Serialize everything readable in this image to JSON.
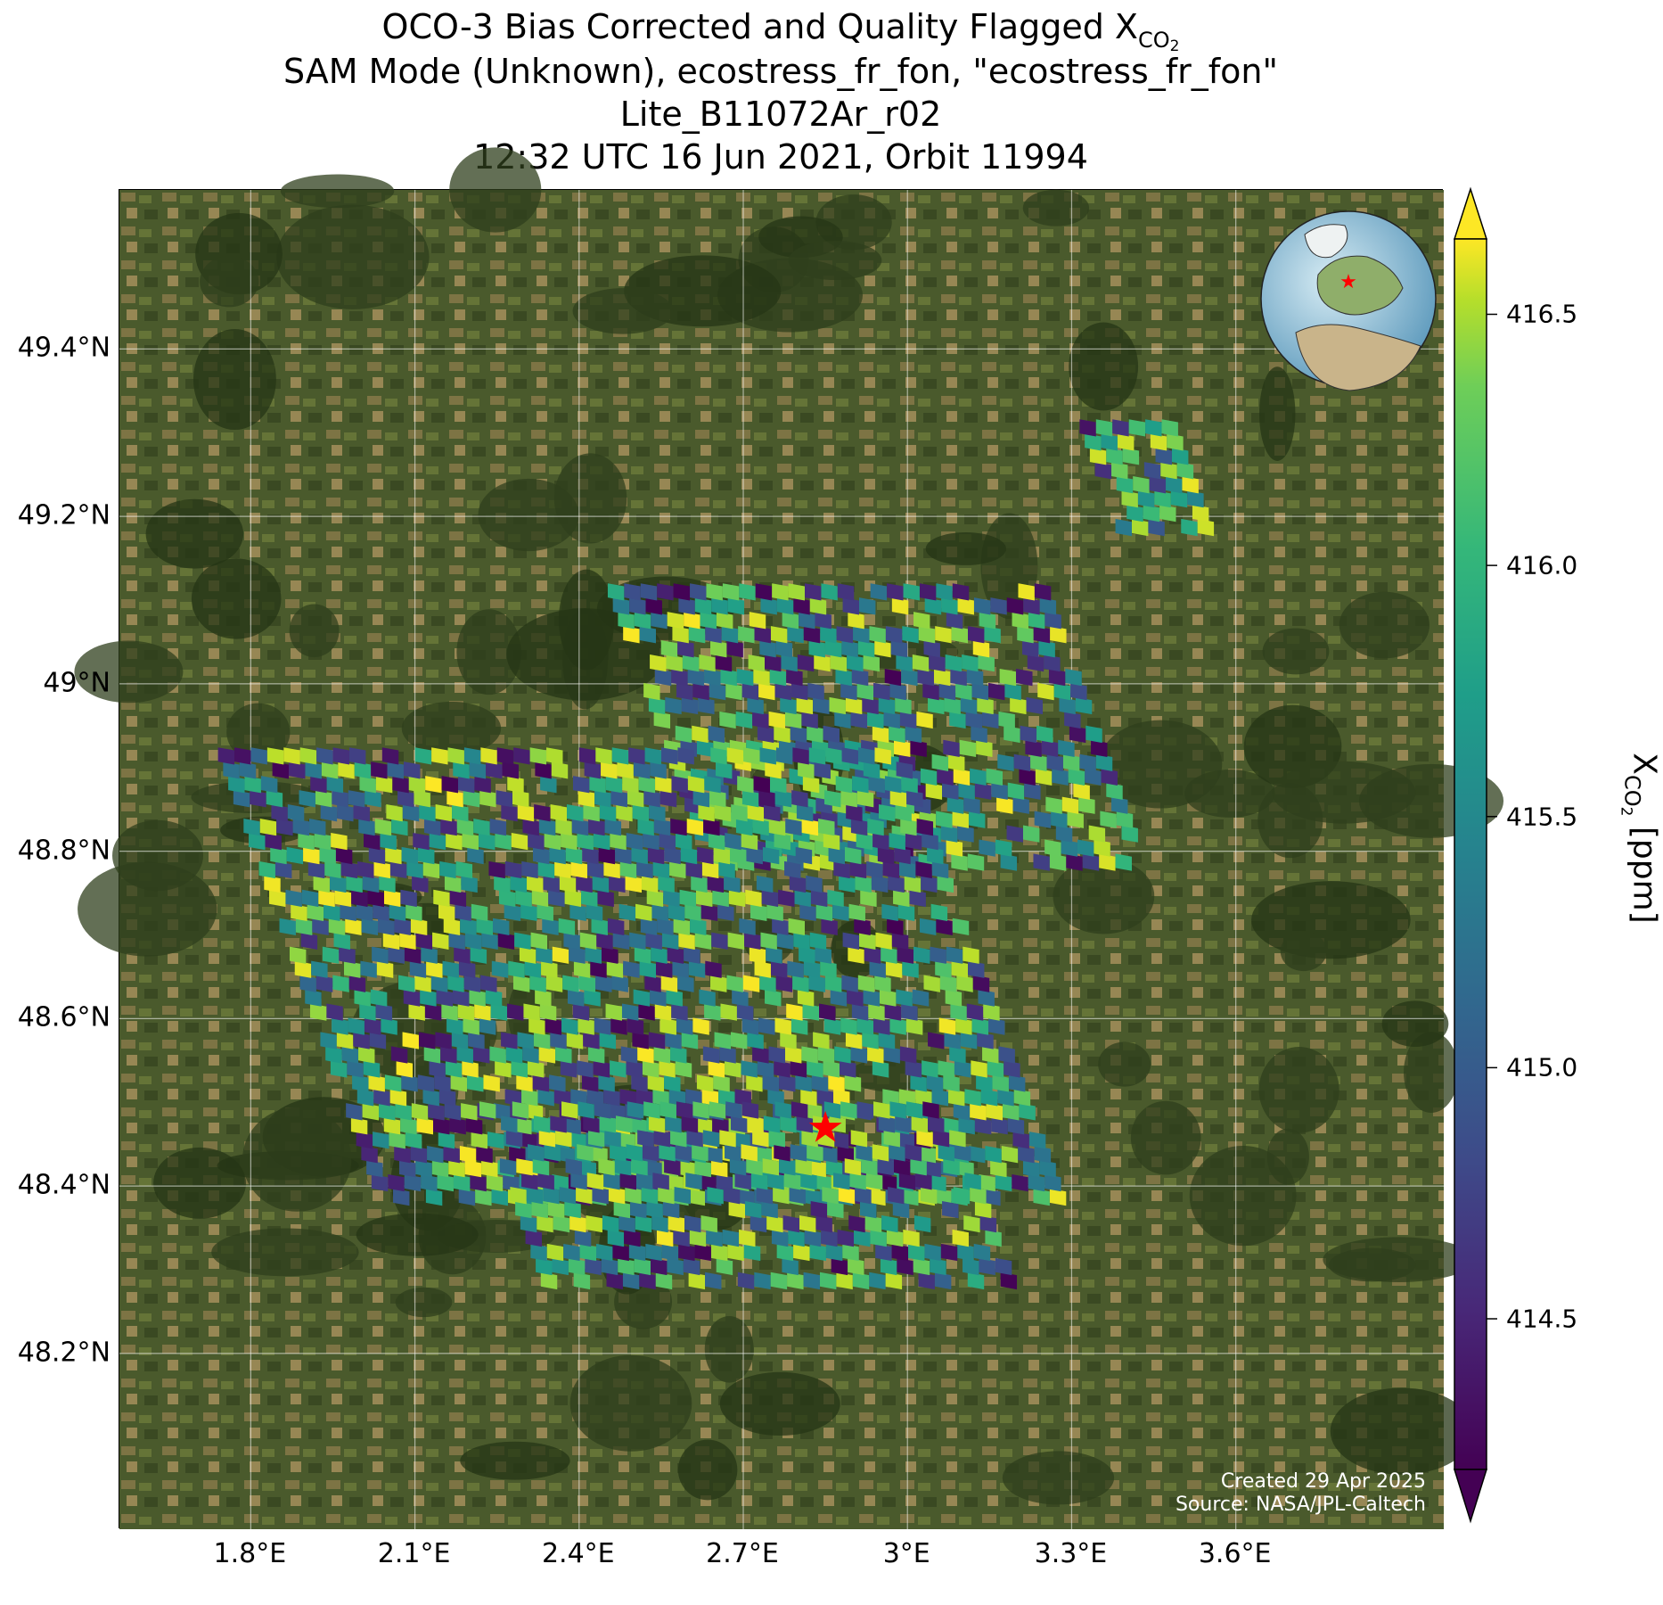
{
  "title": {
    "line1_prefix": "OCO-3 Bias Corrected and Quality Flagged X",
    "line1_sub": "CO",
    "line1_sub2": "2",
    "line2": "SAM Mode (Unknown), ecostress_fr_fon, \"ecostress_fr_fon\"",
    "line3": "Lite_B11072Ar_r02",
    "line4": "12:32 UTC 16 Jun 2021, Orbit 11994"
  },
  "map": {
    "lon_range": [
      1.56,
      3.98
    ],
    "lat_range": [
      47.99,
      49.59
    ],
    "x_ticks": [
      "1.8°E",
      "2.1°E",
      "2.4°E",
      "2.7°E",
      "3°E",
      "3.3°E",
      "3.6°E"
    ],
    "x_tick_values": [
      1.8,
      2.1,
      2.4,
      2.7,
      3.0,
      3.3,
      3.6
    ],
    "y_ticks": [
      "49.4°N",
      "49.2°N",
      "49°N",
      "48.8°N",
      "48.6°N",
      "48.4°N",
      "48.2°N"
    ],
    "y_tick_values": [
      49.4,
      49.2,
      49.0,
      48.8,
      48.6,
      48.4,
      48.2
    ],
    "grid": true,
    "background": "satellite imagery (cropland and forest)",
    "target_marker": {
      "lon": 2.85,
      "lat": 48.47,
      "symbol": "star",
      "color": "#ff0000"
    },
    "inset_globe": {
      "position": "top-right",
      "marker_color": "#ff0000"
    },
    "credit_line1": "Created 29 Apr 2025",
    "credit_line2": "Source: NASA/JPL-Caltech"
  },
  "colorbar": {
    "label_prefix": "X",
    "label_sub": "CO",
    "label_sub2": "2",
    "label_suffix": " [ppm]",
    "colormap": "viridis",
    "min": 414.2,
    "max": 416.65,
    "ticks": [
      "416.5",
      "416.0",
      "415.5",
      "415.0",
      "414.5"
    ],
    "tick_values": [
      416.5,
      416.0,
      415.5,
      415.0,
      414.5
    ],
    "extend": "both"
  },
  "chart_data": {
    "type": "heatmap",
    "variable": "XCO2",
    "units": "ppm",
    "value_range": [
      414.2,
      416.65
    ],
    "footprint_regions": [
      {
        "lon_range": [
          2.55,
          3.35
        ],
        "lat_range": [
          48.78,
          49.12
        ]
      },
      {
        "lon_range": [
          1.95,
          3.2
        ],
        "lat_range": [
          48.38,
          48.92
        ]
      },
      {
        "lon_range": [
          2.25,
          3.1
        ],
        "lat_range": [
          48.28,
          48.5
        ]
      },
      {
        "lon_range": [
          3.3,
          3.45
        ],
        "lat_range": [
          49.18,
          49.3
        ]
      }
    ]
  }
}
